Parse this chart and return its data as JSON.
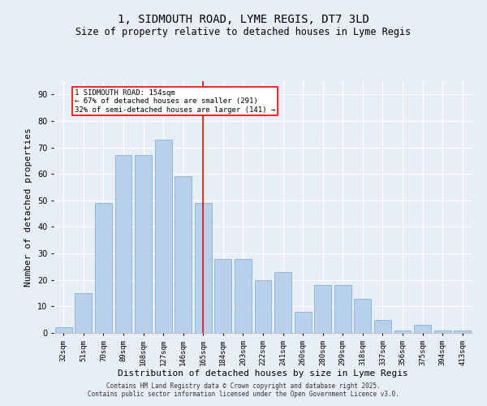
{
  "title": "1, SIDMOUTH ROAD, LYME REGIS, DT7 3LD",
  "subtitle": "Size of property relative to detached houses in Lyme Regis",
  "xlabel": "Distribution of detached houses by size in Lyme Regis",
  "ylabel": "Number of detached properties",
  "categories": [
    "32sqm",
    "51sqm",
    "70sqm",
    "89sqm",
    "108sqm",
    "127sqm",
    "146sqm",
    "165sqm",
    "184sqm",
    "203sqm",
    "222sqm",
    "241sqm",
    "260sqm",
    "280sqm",
    "299sqm",
    "318sqm",
    "337sqm",
    "356sqm",
    "375sqm",
    "394sqm",
    "413sqm"
  ],
  "values": [
    2,
    15,
    49,
    67,
    67,
    73,
    59,
    49,
    28,
    28,
    20,
    23,
    8,
    18,
    18,
    13,
    5,
    1,
    3,
    1,
    1
  ],
  "bar_color": "#b8d0ea",
  "bar_edge_color": "#7aaad0",
  "ylim": [
    0,
    95
  ],
  "yticks": [
    0,
    10,
    20,
    30,
    40,
    50,
    60,
    70,
    80,
    90
  ],
  "vline_x": 7.0,
  "vline_color": "red",
  "annotation_title": "1 SIDMOUTH ROAD: 154sqm",
  "annotation_line1": "← 67% of detached houses are smaller (291)",
  "annotation_line2": "32% of semi-detached houses are larger (141) →",
  "annotation_box_color": "#ffffff",
  "annotation_box_edge": "red",
  "footer1": "Contains HM Land Registry data © Crown copyright and database right 2025.",
  "footer2": "Contains public sector information licensed under the Open Government Licence v3.0.",
  "background_color": "#e8eef8",
  "plot_background": "#e8eef8",
  "grid_color": "#ffffff",
  "title_fontsize": 10,
  "subtitle_fontsize": 8.5,
  "xlabel_fontsize": 8,
  "ylabel_fontsize": 8,
  "footer_fontsize": 5.5,
  "annotation_fontsize": 6.5,
  "tick_fontsize": 6.5,
  "ytick_fontsize": 7
}
